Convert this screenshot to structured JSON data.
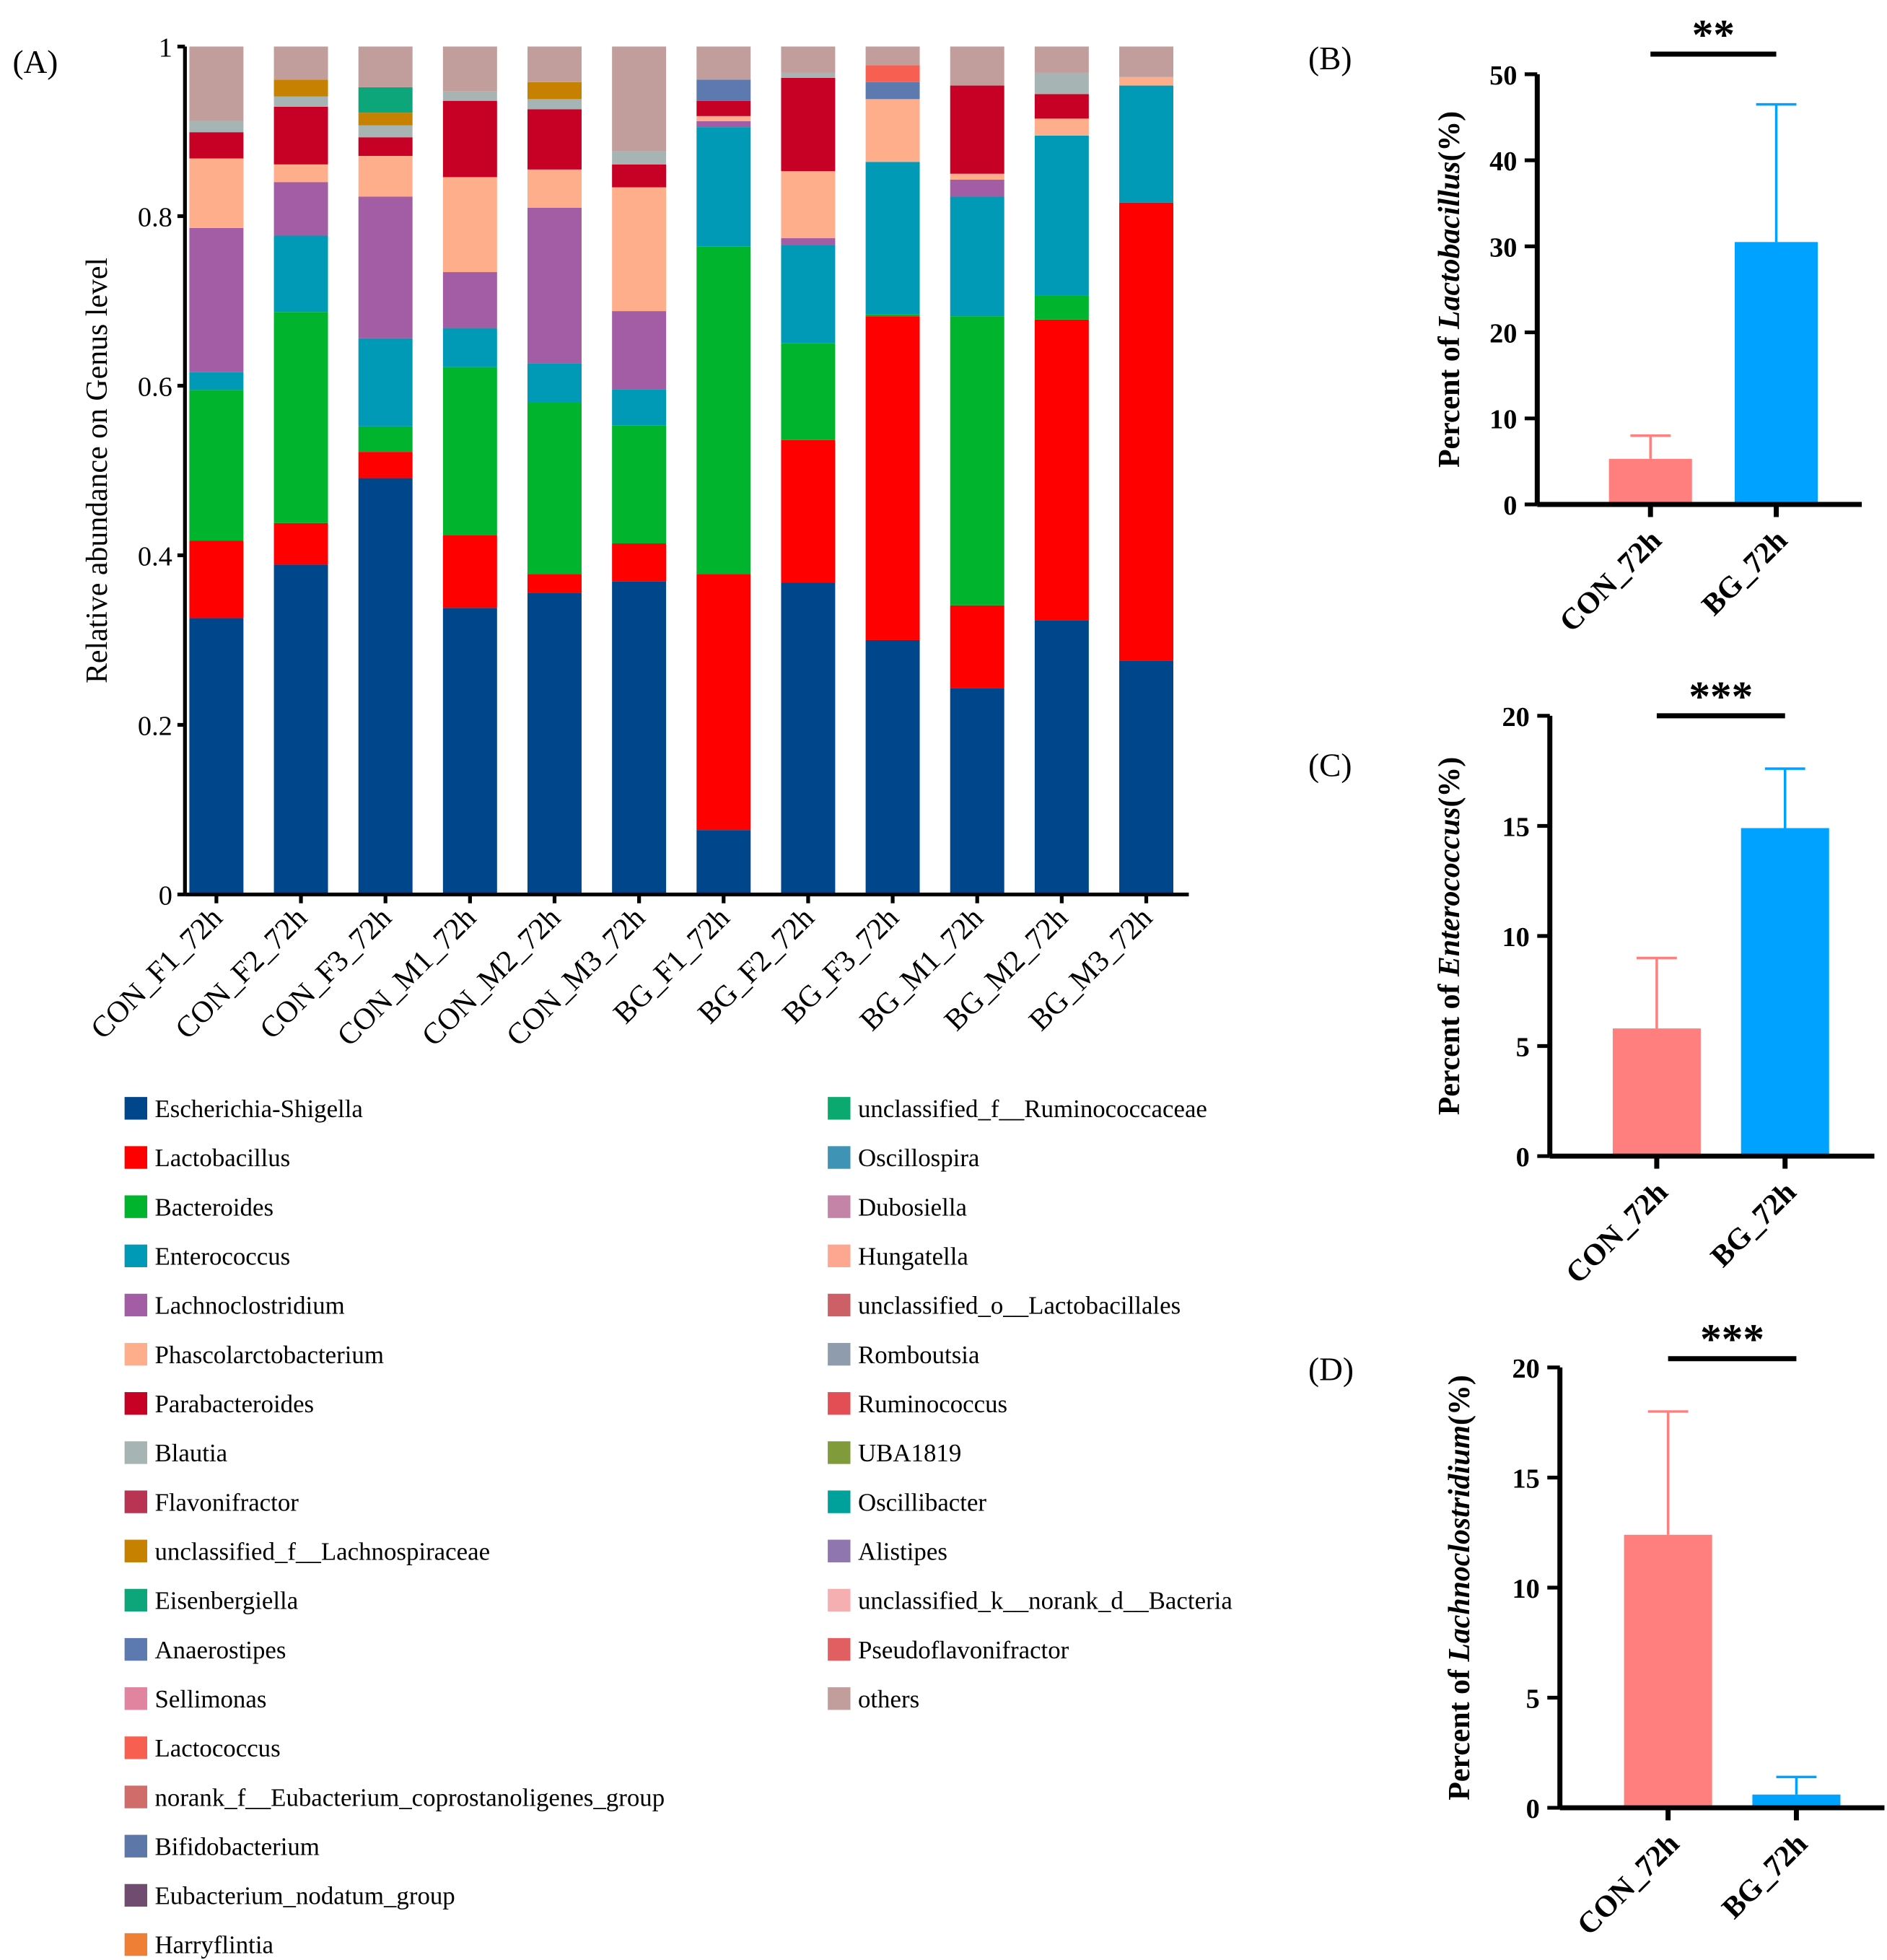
{
  "chart_data": [
    {
      "panel": "(A)",
      "type": "bar",
      "stacked": true,
      "ylabel": "Relative abundance on Genus level",
      "ylim": [
        0,
        1
      ],
      "yticks": [
        "0",
        "0.2",
        "0.4",
        "0.6",
        "0.8",
        "1"
      ],
      "categories": [
        "CON_F1_72h",
        "CON_F2_72h",
        "CON_F3_72h",
        "CON_M1_72h",
        "CON_M2_72h",
        "CON_M3_72h",
        "BG_F1_72h",
        "BG_F2_72h",
        "BG_F3_72h",
        "BG_M1_72h",
        "BG_M2_72h",
        "BG_M3_72h"
      ],
      "legend_position": "bottom",
      "series": [
        {
          "name": "Escherichia-Shigella",
          "color": "#00468B",
          "values": [
            0.326,
            0.389,
            0.491,
            0.338,
            0.356,
            0.369,
            0.076,
            0.368,
            0.3,
            0.243,
            0.323,
            0.276
          ]
        },
        {
          "name": "Lactobacillus",
          "color": "#FF0000",
          "values": [
            0.091,
            0.049,
            0.031,
            0.086,
            0.022,
            0.045,
            0.302,
            0.168,
            0.382,
            0.098,
            0.355,
            0.54
          ]
        },
        {
          "name": "Bacteroides",
          "color": "#00B52E",
          "values": [
            0.178,
            0.249,
            0.03,
            0.198,
            0.202,
            0.139,
            0.386,
            0.114,
            0.002,
            0.341,
            0.028,
            0
          ]
        },
        {
          "name": "Enterococcus",
          "color": "#009AB6",
          "values": [
            0.021,
            0.09,
            0.104,
            0.046,
            0.046,
            0.043,
            0.141,
            0.116,
            0.18,
            0.141,
            0.189,
            0.138
          ]
        },
        {
          "name": "Lachnoclostridium",
          "color": "#A35DA4",
          "values": [
            0.17,
            0.063,
            0.167,
            0.066,
            0.184,
            0.092,
            0.007,
            0.008,
            0,
            0.02,
            0,
            0
          ]
        },
        {
          "name": "Phascolarctobacterium",
          "color": "#FFAE8C",
          "values": [
            0.082,
            0.021,
            0.048,
            0.112,
            0.045,
            0.146,
            0.006,
            0.079,
            0.074,
            0.007,
            0.02,
            0.01
          ]
        },
        {
          "name": "Parabacteroides",
          "color": "#C70025",
          "values": [
            0.031,
            0.068,
            0.022,
            0.09,
            0.071,
            0.027,
            0.018,
            0.11,
            0,
            0.104,
            0.029,
            0
          ]
        },
        {
          "name": "Blautia",
          "color": "#A6B5B3",
          "values": [
            0.013,
            0.012,
            0.014,
            0.011,
            0.012,
            0.016,
            0,
            0.006,
            0,
            0,
            0.025,
            0
          ]
        },
        {
          "name": "Flavonifractor",
          "color": "#B93453",
          "values": [
            0,
            0,
            0,
            0,
            0,
            0,
            0,
            0,
            0,
            0,
            0,
            0
          ]
        },
        {
          "name": "unclassified_f__Lachnospiraceae",
          "color": "#C78100",
          "values": [
            0,
            0.02,
            0.015,
            0,
            0.02,
            0,
            0,
            0,
            0,
            0,
            0,
            0
          ]
        },
        {
          "name": "Eisenbergiella",
          "color": "#0DA67B",
          "values": [
            0,
            0,
            0.03,
            0,
            0,
            0,
            0,
            0,
            0,
            0,
            0,
            0
          ]
        },
        {
          "name": "Anaerostipes",
          "color": "#5C7AB0",
          "values": [
            0,
            0,
            0,
            0,
            0,
            0,
            0.025,
            0,
            0.02,
            0,
            0,
            0
          ]
        },
        {
          "name": "Sellimonas",
          "color": "#E184A0",
          "values": [
            0,
            0,
            0,
            0,
            0,
            0,
            0,
            0,
            0,
            0,
            0,
            0
          ]
        },
        {
          "name": "Lactococcus",
          "color": "#F76050",
          "values": [
            0,
            0,
            0,
            0,
            0,
            0,
            0,
            0,
            0.02,
            0,
            0,
            0
          ]
        },
        {
          "name": "norank_f__Eubacterium_coprostanoligenes_group",
          "color": "#D06D6B",
          "values": [
            0,
            0,
            0,
            0,
            0,
            0,
            0,
            0,
            0,
            0,
            0,
            0
          ]
        },
        {
          "name": "Bifidobacterium",
          "color": "#5D77A8",
          "values": [
            0,
            0,
            0,
            0,
            0,
            0,
            0,
            0,
            0,
            0,
            0,
            0
          ]
        },
        {
          "name": "Eubacterium_nodatum_group",
          "color": "#6F4C70",
          "values": [
            0,
            0,
            0,
            0,
            0,
            0,
            0,
            0,
            0,
            0,
            0,
            0
          ]
        },
        {
          "name": "Harryflintia",
          "color": "#EE7F35",
          "values": [
            0,
            0,
            0,
            0,
            0,
            0,
            0,
            0,
            0,
            0,
            0,
            0
          ]
        },
        {
          "name": "unclassified_f__Ruminococcaceae",
          "color": "#0AA970",
          "values": [
            0,
            0,
            0,
            0,
            0,
            0,
            0,
            0,
            0,
            0,
            0,
            0
          ]
        },
        {
          "name": "Oscillospira",
          "color": "#3F93B5",
          "values": [
            0,
            0,
            0,
            0,
            0,
            0,
            0,
            0,
            0,
            0,
            0,
            0
          ]
        },
        {
          "name": "Dubosiella",
          "color": "#C384A8",
          "values": [
            0,
            0,
            0,
            0,
            0,
            0,
            0,
            0,
            0,
            0,
            0,
            0
          ]
        },
        {
          "name": "Hungatella",
          "color": "#FDA690",
          "values": [
            0,
            0,
            0,
            0,
            0,
            0,
            0,
            0,
            0,
            0,
            0,
            0
          ]
        },
        {
          "name": "unclassified_o__Lactobacillales",
          "color": "#CD5F66",
          "values": [
            0,
            0,
            0,
            0,
            0,
            0,
            0,
            0,
            0,
            0,
            0,
            0
          ]
        },
        {
          "name": "Romboutsia",
          "color": "#8E9CAE",
          "values": [
            0,
            0,
            0,
            0,
            0,
            0,
            0,
            0,
            0,
            0,
            0,
            0
          ]
        },
        {
          "name": "Ruminococcus",
          "color": "#E34E54",
          "values": [
            0,
            0,
            0,
            0,
            0,
            0,
            0,
            0,
            0,
            0,
            0,
            0
          ]
        },
        {
          "name": "UBA1819",
          "color": "#7F9B3A",
          "values": [
            0,
            0,
            0,
            0,
            0,
            0,
            0,
            0,
            0,
            0,
            0,
            0
          ]
        },
        {
          "name": "Oscillibacter",
          "color": "#00A19B",
          "values": [
            0,
            0,
            0,
            0,
            0,
            0,
            0,
            0,
            0,
            0,
            0,
            0
          ]
        },
        {
          "name": "Alistipes",
          "color": "#8F76AF",
          "values": [
            0,
            0,
            0,
            0,
            0,
            0,
            0,
            0,
            0,
            0,
            0,
            0
          ]
        },
        {
          "name": "unclassified_k__norank_d__Bacteria",
          "color": "#F6AFB1",
          "values": [
            0,
            0,
            0,
            0,
            0,
            0,
            0,
            0,
            0,
            0,
            0,
            0
          ]
        },
        {
          "name": "Pseudoflavonifractor",
          "color": "#E15F61",
          "values": [
            0,
            0,
            0,
            0,
            0,
            0,
            0,
            0,
            0,
            0,
            0,
            0
          ]
        },
        {
          "name": "others",
          "color": "#C19E9C",
          "values": [
            0.088,
            0.039,
            0.048,
            0.053,
            0.042,
            0.123,
            0.039,
            0.031,
            0.022,
            0.046,
            0.031,
            0.036
          ]
        }
      ]
    },
    {
      "panel": "(B)",
      "type": "bar",
      "ylabel_prefix": "Percent of ",
      "ylabel_italic": "Lactobacillus",
      "ylabel_suffix": "(%)",
      "ylim": [
        0,
        50
      ],
      "yticks": [
        "0",
        "10",
        "20",
        "30",
        "40",
        "50"
      ],
      "categories": [
        "CON_72h",
        "BG_72h"
      ],
      "values": [
        5.3,
        30.5
      ],
      "error_upper": [
        8.0,
        46.5
      ],
      "colors": [
        "#FF7F7F",
        "#00A2FF"
      ],
      "significance": "**"
    },
    {
      "panel": "(C)",
      "type": "bar",
      "ylabel_prefix": "Percent of ",
      "ylabel_italic": "Enterococcus",
      "ylabel_suffix": "(%)",
      "ylim": [
        0,
        20
      ],
      "yticks": [
        "0",
        "5",
        "10",
        "15",
        "20"
      ],
      "categories": [
        "CON_72h",
        "BG_72h"
      ],
      "values": [
        5.8,
        14.9
      ],
      "error_upper": [
        9.0,
        17.6
      ],
      "colors": [
        "#FF7F7F",
        "#00A2FF"
      ],
      "significance": "***"
    },
    {
      "panel": "(D)",
      "type": "bar",
      "ylabel_prefix": "Percent of ",
      "ylabel_italic": "Lachnoclostridium",
      "ylabel_suffix": "(%)",
      "ylim": [
        0,
        20
      ],
      "yticks": [
        "0",
        "5",
        "10",
        "15",
        "20"
      ],
      "categories": [
        "CON_72h",
        "BG_72h"
      ],
      "values": [
        12.4,
        0.6
      ],
      "error_upper": [
        18.0,
        1.4
      ],
      "colors": [
        "#FF7F7F",
        "#00A2FF"
      ],
      "significance": "***"
    }
  ]
}
